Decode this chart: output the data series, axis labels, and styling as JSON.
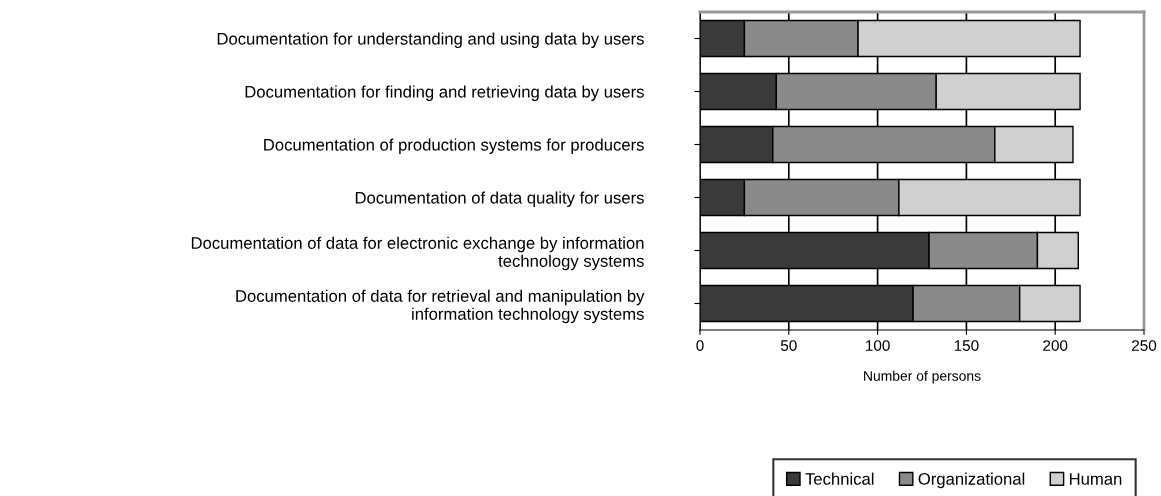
{
  "chart_data": {
    "type": "bar",
    "orientation": "horizontal",
    "stacked": true,
    "xlabel": "Number of persons",
    "categories": [
      "Documentation for understanding and using data by users",
      "Documentation for finding and retrieving data by users",
      "Documentation of production systems for producers",
      "Documentation of data quality for users",
      "Documentation of data for electronic exchange by information\ntechnology systems",
      "Documentation of data for retrieval and manipulation by\ninformation technology systems"
    ],
    "series": [
      {
        "name": "Technical",
        "color": "#3a3a3a",
        "values": [
          25,
          43,
          41,
          25,
          129,
          120
        ]
      },
      {
        "name": "Organizational",
        "color": "#8a8a8a",
        "values": [
          64,
          90,
          125,
          87,
          61,
          60
        ]
      },
      {
        "name": "Human",
        "color": "#d0d0d0",
        "values": [
          125,
          81,
          44,
          102,
          23,
          34
        ]
      }
    ],
    "xlim": [
      0,
      250
    ],
    "xticks": [
      0,
      50,
      100,
      150,
      200,
      250
    ],
    "grid": "x",
    "legend": "bottom right"
  }
}
